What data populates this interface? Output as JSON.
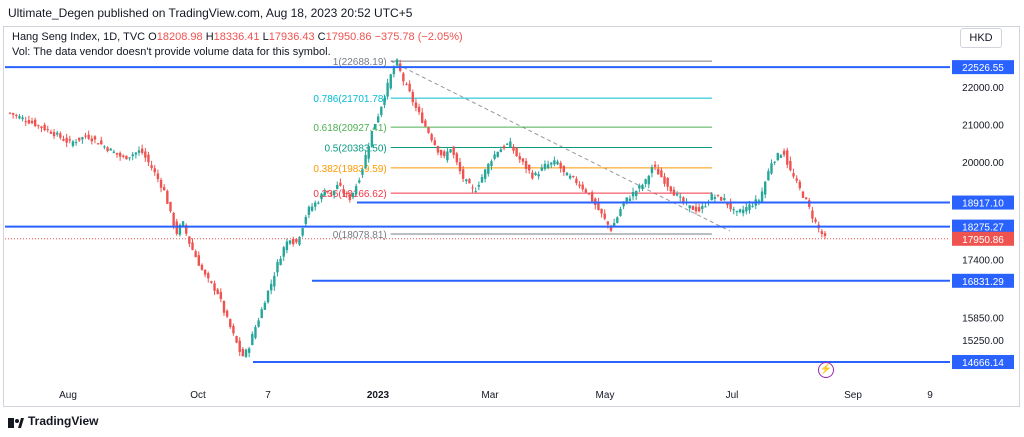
{
  "header": {
    "published": "Ultimate_Degen published on TradingView.com, Aug 18, 2023 20:52 UTC+5"
  },
  "legend": {
    "symbol": "Hang Seng Index, 1D, TVC",
    "o_label": "O",
    "o": "18208.98",
    "h_label": "H",
    "h": "18336.41",
    "l_label": "L",
    "l": "17936.43",
    "c_label": "C",
    "c": "17950.86",
    "change": "−375.78 (−2.05%)",
    "vol": "Vol: The data vendor doesn't provide volume data for this symbol."
  },
  "currency_button": "HKD",
  "brand": "TradingView",
  "colors": {
    "up": "#26a69a",
    "down": "#ef5350",
    "hline": "#2962ff",
    "price_label": "#ef5350",
    "level_label": "#2962ff"
  },
  "chart_data": {
    "type": "candlestick",
    "title": "Hang Seng Index, 1D, TVC",
    "x_ticks": [
      "Aug",
      "Oct",
      "7",
      "2023",
      "Mar",
      "May",
      "Jul",
      "Sep",
      "9"
    ],
    "y_ticks": [
      22000.0,
      21000.0,
      20000.0,
      17400.0,
      15850.0,
      15250.0
    ],
    "ylim": [
      14400,
      22850
    ],
    "last_price": 17950.86,
    "horizontal_levels": [
      22526.55,
      18917.1,
      18275.27,
      16831.29,
      14666.14
    ],
    "fibonacci": [
      {
        "ratio": "1",
        "value": 22688.19,
        "label": "1(22688.19)",
        "color": "#787b86"
      },
      {
        "ratio": "0.786",
        "value": 21701.78,
        "label": "0.786(21701.78)",
        "color": "#00bcd4"
      },
      {
        "ratio": "0.618",
        "value": 20927.41,
        "label": "0.618(20927.41)",
        "color": "#4caf50"
      },
      {
        "ratio": "0.5",
        "value": 20383.5,
        "label": "0.5(20383.50)",
        "color": "#089981"
      },
      {
        "ratio": "0.382",
        "value": 19839.59,
        "label": "0.382(19839.59)",
        "color": "#ff9800"
      },
      {
        "ratio": "0.236",
        "value": 19166.62,
        "label": "0.236(19166.62)",
        "color": "#f23645"
      },
      {
        "ratio": "0",
        "value": 18078.81,
        "label": "0(18078.81)",
        "color": "#787b86"
      }
    ],
    "price_path": [
      [
        0,
        21300
      ],
      [
        3,
        21100
      ],
      [
        7,
        20800
      ],
      [
        10,
        20500
      ],
      [
        13,
        20700
      ],
      [
        16,
        20400
      ],
      [
        19,
        20100
      ],
      [
        22,
        20300
      ],
      [
        24,
        19800
      ],
      [
        26,
        19200
      ],
      [
        27,
        18600
      ],
      [
        28,
        18100
      ],
      [
        29,
        18400
      ],
      [
        30,
        17900
      ],
      [
        32,
        17200
      ],
      [
        33,
        16900
      ],
      [
        35,
        16500
      ],
      [
        36,
        16000
      ],
      [
        37,
        15600
      ],
      [
        38,
        15200
      ],
      [
        39,
        14800
      ],
      [
        40,
        15000
      ],
      [
        41,
        15500
      ],
      [
        42,
        15900
      ],
      [
        43,
        16400
      ],
      [
        44,
        16800
      ],
      [
        45,
        17300
      ],
      [
        46,
        17700
      ],
      [
        47,
        18000
      ],
      [
        48,
        17800
      ],
      [
        49,
        18200
      ],
      [
        50,
        18700
      ],
      [
        52,
        19000
      ],
      [
        53,
        19300
      ],
      [
        54,
        19100
      ],
      [
        55,
        19400
      ],
      [
        57,
        19000
      ],
      [
        58,
        19300
      ],
      [
        59,
        19700
      ],
      [
        60,
        20300
      ],
      [
        61,
        20900
      ],
      [
        62,
        21300
      ],
      [
        63,
        21800
      ],
      [
        64,
        22300
      ],
      [
        65,
        22688
      ],
      [
        66,
        22200
      ],
      [
        67,
        21900
      ],
      [
        68,
        21500
      ],
      [
        69,
        21200
      ],
      [
        70,
        20900
      ],
      [
        71,
        20600
      ],
      [
        72,
        20300
      ],
      [
        73,
        20100
      ],
      [
        74,
        20400
      ],
      [
        75,
        20000
      ],
      [
        76,
        19600
      ],
      [
        77,
        19400
      ],
      [
        78,
        19200
      ],
      [
        79,
        19500
      ],
      [
        80,
        19800
      ],
      [
        81,
        20100
      ],
      [
        82,
        20300
      ],
      [
        84,
        20500
      ],
      [
        85,
        20200
      ],
      [
        87,
        19800
      ],
      [
        88,
        19600
      ],
      [
        90,
        19900
      ],
      [
        92,
        20000
      ],
      [
        93,
        19700
      ],
      [
        95,
        19500
      ],
      [
        97,
        19200
      ],
      [
        99,
        18700
      ],
      [
        101,
        18200
      ],
      [
        102,
        18500
      ],
      [
        103,
        18900
      ],
      [
        105,
        19200
      ],
      [
        107,
        19500
      ],
      [
        108,
        19900
      ],
      [
        110,
        19500
      ],
      [
        112,
        19100
      ],
      [
        114,
        18800
      ],
      [
        116,
        18700
      ],
      [
        118,
        19100
      ],
      [
        120,
        19000
      ],
      [
        122,
        18600
      ],
      [
        124,
        18800
      ],
      [
        126,
        19000
      ],
      [
        127,
        19500
      ],
      [
        128,
        20000
      ],
      [
        130,
        20300
      ],
      [
        131,
        19800
      ],
      [
        132,
        19500
      ],
      [
        133,
        19200
      ],
      [
        134,
        18900
      ],
      [
        135,
        18500
      ],
      [
        136,
        18200
      ],
      [
        137,
        17950
      ]
    ]
  }
}
